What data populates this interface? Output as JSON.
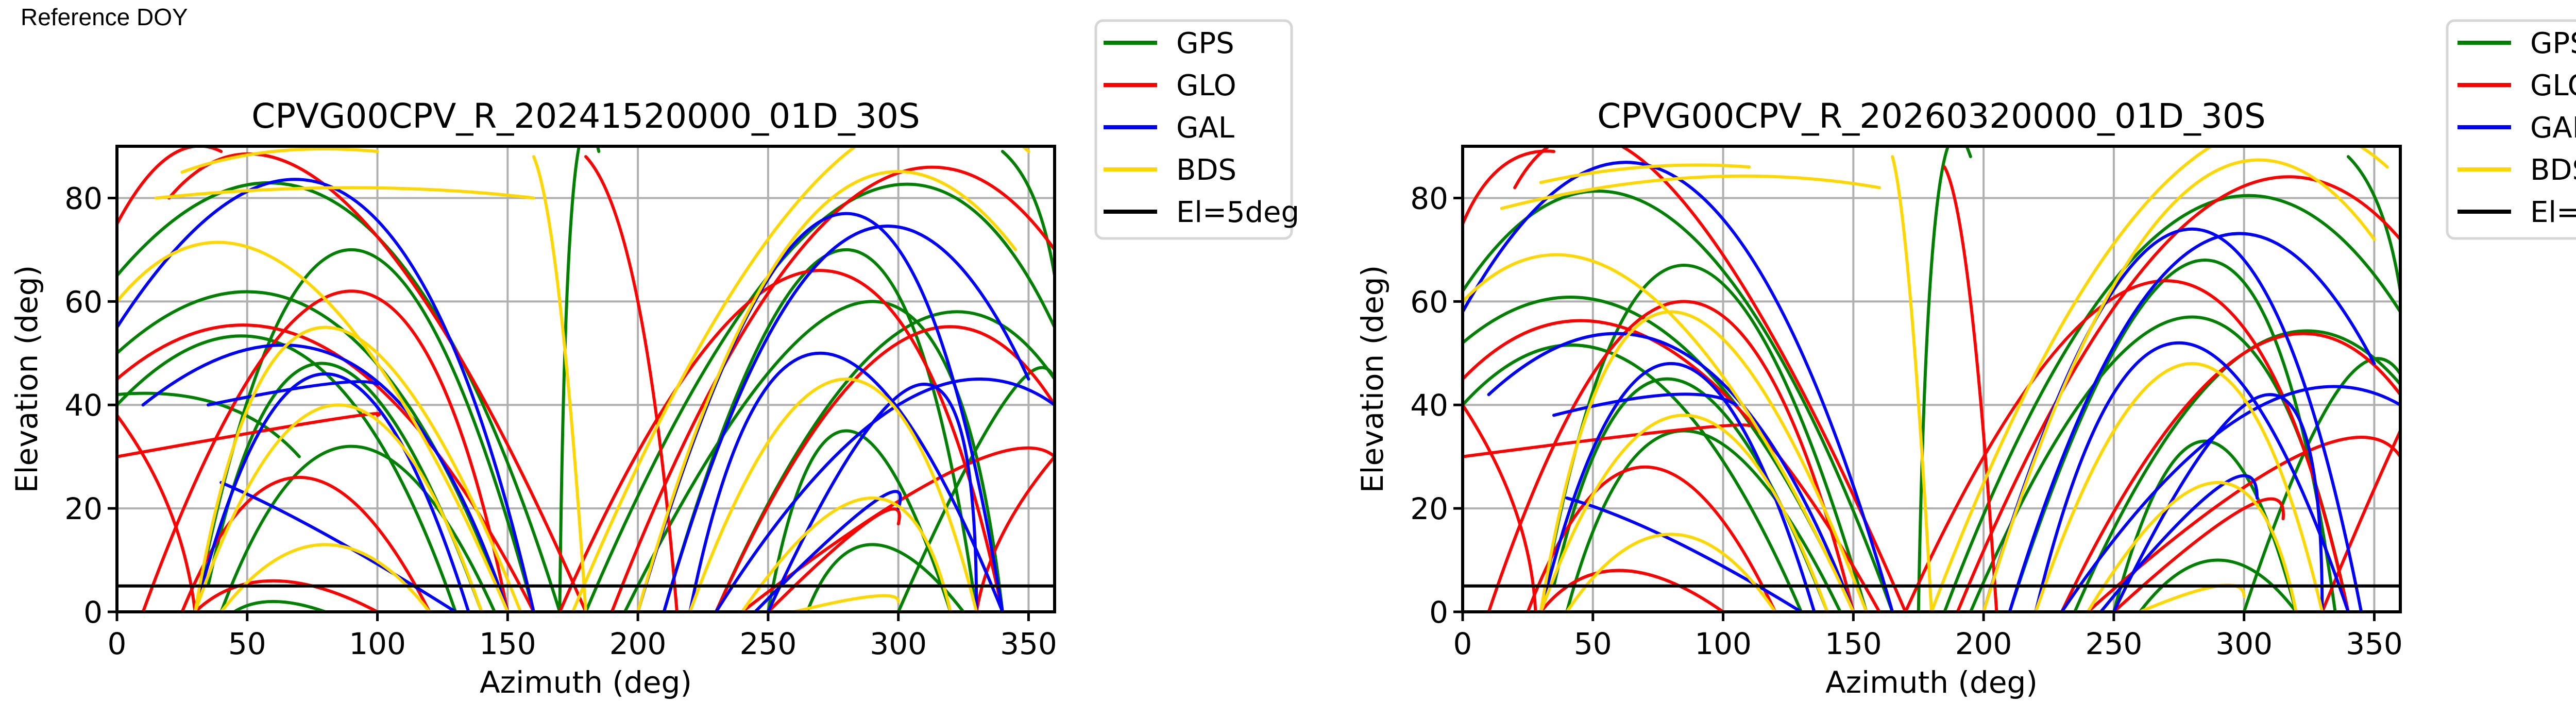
{
  "header": {
    "reference_label": "Reference DOY"
  },
  "systems": [
    {
      "key": "GPS",
      "label": "GPS",
      "color": "#008000"
    },
    {
      "key": "GLO",
      "label": "GLO",
      "color": "#ff0000"
    },
    {
      "key": "GAL",
      "label": "GAL",
      "color": "#0000ff"
    },
    {
      "key": "BDS",
      "label": "BDS",
      "color": "#ffd700"
    }
  ],
  "cutoff": {
    "label": "El=5deg",
    "elevation": 5,
    "color": "#000000"
  },
  "chart_data": [
    {
      "type": "line",
      "title": "CPVG00CPV_R_20241520000_01D_30S",
      "xlabel": "Azimuth (deg)",
      "ylabel": "Elevation (deg)",
      "xlim": [
        0,
        360
      ],
      "ylim": [
        0,
        90
      ],
      "xticks": [
        0,
        50,
        100,
        150,
        200,
        250,
        300,
        350
      ],
      "yticks": [
        0,
        20,
        40,
        60,
        80
      ],
      "grid": true,
      "legend": "outside-top-right",
      "tracks_format": "[az_start, el_start, az_mid, el_mid, az_end, el_end]",
      "tracks": {
        "GPS": [
          [
            0,
            65,
            90,
            77,
            170,
            0
          ],
          [
            30,
            0,
            90,
            70,
            160,
            0
          ],
          [
            0,
            50,
            80,
            57,
            150,
            0
          ],
          [
            40,
            0,
            90,
            32,
            145,
            0
          ],
          [
            35,
            5,
            80,
            48,
            140,
            0
          ],
          [
            0,
            40,
            70,
            50,
            130,
            0
          ],
          [
            180,
            0,
            280,
            79,
            360,
            55
          ],
          [
            210,
            0,
            280,
            70,
            330,
            0
          ],
          [
            195,
            0,
            290,
            60,
            340,
            0
          ],
          [
            230,
            0,
            300,
            54,
            360,
            45
          ],
          [
            250,
            0,
            280,
            35,
            320,
            0
          ],
          [
            265,
            0,
            290,
            13,
            325,
            0
          ],
          [
            170,
            0,
            175,
            80,
            185,
            89
          ],
          [
            340,
            89,
            352,
            80,
            360,
            65
          ],
          [
            45,
            0,
            60,
            2,
            80,
            0
          ],
          [
            0,
            42,
            40,
            40,
            70,
            30
          ],
          [
            300,
            0,
            340,
            40,
            360,
            45
          ]
        ],
        "GLO": [
          [
            0,
            30,
            80,
            37,
            100,
            38
          ],
          [
            0,
            75,
            20,
            88,
            40,
            89
          ],
          [
            20,
            80,
            90,
            78,
            180,
            0
          ],
          [
            10,
            0,
            90,
            62,
            150,
            0
          ],
          [
            25,
            0,
            70,
            26,
            120,
            0
          ],
          [
            30,
            0,
            60,
            6,
            100,
            0
          ],
          [
            0,
            45,
            80,
            51,
            160,
            0
          ],
          [
            170,
            0,
            270,
            66,
            340,
            0
          ],
          [
            190,
            0,
            280,
            79,
            360,
            70
          ],
          [
            230,
            0,
            300,
            52,
            360,
            40
          ],
          [
            240,
            0,
            320,
            27,
            360,
            30
          ],
          [
            250,
            0,
            290,
            18,
            300,
            17
          ],
          [
            330,
            0,
            340,
            15,
            360,
            30
          ],
          [
            180,
            88,
            200,
            60,
            215,
            0
          ],
          [
            0,
            38,
            20,
            20,
            30,
            0
          ]
        ],
        "GAL": [
          [
            0,
            55,
            90,
            80,
            160,
            0
          ],
          [
            10,
            40,
            90,
            48,
            150,
            0
          ],
          [
            30,
            0,
            80,
            46,
            135,
            0
          ],
          [
            35,
            40,
            80,
            44,
            100,
            44
          ],
          [
            40,
            25,
            80,
            15,
            130,
            0
          ],
          [
            200,
            0,
            280,
            77,
            340,
            0
          ],
          [
            210,
            0,
            280,
            72,
            350,
            45
          ],
          [
            220,
            0,
            270,
            50,
            340,
            0
          ],
          [
            230,
            0,
            300,
            40,
            360,
            40
          ],
          [
            245,
            0,
            290,
            21,
            300,
            20
          ],
          [
            250,
            0,
            310,
            44,
            330,
            0
          ]
        ],
        "BDS": [
          [
            25,
            85,
            60,
            89,
            100,
            89
          ],
          [
            0,
            60,
            70,
            65,
            150,
            0
          ],
          [
            30,
            0,
            80,
            55,
            155,
            0
          ],
          [
            40,
            0,
            80,
            13,
            120,
            0
          ],
          [
            30,
            0,
            85,
            40,
            140,
            0
          ],
          [
            175,
            0,
            270,
            84,
            350,
            89
          ],
          [
            200,
            0,
            270,
            78,
            345,
            70
          ],
          [
            220,
            0,
            280,
            45,
            330,
            0
          ],
          [
            240,
            0,
            290,
            22,
            320,
            0
          ],
          [
            260,
            0,
            290,
            3,
            300,
            2
          ],
          [
            160,
            88,
            170,
            60,
            180,
            0
          ],
          [
            15,
            80,
            90,
            82,
            160,
            80
          ]
        ]
      }
    },
    {
      "type": "line",
      "title": "CPVG00CPV_R_20260320000_01D_30S",
      "xlabel": "Azimuth (deg)",
      "ylabel": "Elevation (deg)",
      "xlim": [
        0,
        360
      ],
      "ylim": [
        0,
        90
      ],
      "xticks": [
        0,
        50,
        100,
        150,
        200,
        250,
        300,
        350
      ],
      "yticks": [
        0,
        20,
        40,
        60,
        80
      ],
      "grid": true,
      "legend": "outside-top-right",
      "tracks_format": "[az_start, el_start, az_mid, el_mid, az_end, el_end]",
      "tracks": {
        "GPS": [
          [
            0,
            62,
            80,
            76,
            165,
            0
          ],
          [
            30,
            0,
            85,
            67,
            155,
            0
          ],
          [
            0,
            52,
            75,
            55,
            150,
            0
          ],
          [
            40,
            0,
            85,
            35,
            145,
            0
          ],
          [
            35,
            5,
            80,
            45,
            140,
            0
          ],
          [
            0,
            40,
            65,
            48,
            130,
            0
          ],
          [
            185,
            0,
            275,
            76,
            360,
            58
          ],
          [
            210,
            0,
            285,
            68,
            335,
            0
          ],
          [
            195,
            0,
            280,
            57,
            340,
            0
          ],
          [
            235,
            0,
            300,
            50,
            360,
            44
          ],
          [
            250,
            0,
            285,
            33,
            320,
            0
          ],
          [
            260,
            0,
            290,
            10,
            320,
            0
          ],
          [
            175,
            0,
            182,
            78,
            195,
            88
          ],
          [
            340,
            88,
            352,
            78,
            360,
            62
          ],
          [
            300,
            0,
            335,
            42,
            360,
            46
          ]
        ],
        "GLO": [
          [
            0,
            30,
            80,
            35,
            110,
            36
          ],
          [
            0,
            75,
            15,
            86,
            35,
            89
          ],
          [
            20,
            82,
            80,
            82,
            170,
            0
          ],
          [
            10,
            0,
            85,
            60,
            150,
            0
          ],
          [
            25,
            0,
            70,
            28,
            120,
            0
          ],
          [
            30,
            0,
            60,
            8,
            100,
            0
          ],
          [
            0,
            45,
            75,
            52,
            160,
            0
          ],
          [
            170,
            0,
            270,
            64,
            340,
            0
          ],
          [
            190,
            0,
            280,
            76,
            360,
            72
          ],
          [
            230,
            0,
            300,
            50,
            360,
            42
          ],
          [
            240,
            0,
            320,
            30,
            360,
            30
          ],
          [
            250,
            0,
            300,
            20,
            315,
            18
          ],
          [
            330,
            0,
            345,
            18,
            360,
            35
          ],
          [
            185,
            86,
            195,
            60,
            205,
            0
          ],
          [
            0,
            40,
            20,
            20,
            28,
            0
          ]
        ],
        "GAL": [
          [
            0,
            58,
            85,
            83,
            165,
            0
          ],
          [
            10,
            42,
            85,
            50,
            150,
            0
          ],
          [
            30,
            0,
            80,
            48,
            135,
            0
          ],
          [
            35,
            38,
            80,
            42,
            105,
            40
          ],
          [
            40,
            22,
            80,
            14,
            130,
            0
          ],
          [
            200,
            0,
            280,
            74,
            345,
            0
          ],
          [
            210,
            0,
            280,
            70,
            350,
            48
          ],
          [
            220,
            0,
            275,
            52,
            340,
            0
          ],
          [
            230,
            0,
            300,
            38,
            360,
            40
          ],
          [
            245,
            0,
            290,
            24,
            305,
            22
          ],
          [
            250,
            0,
            310,
            42,
            330,
            0
          ]
        ],
        "BDS": [
          [
            30,
            83,
            70,
            86,
            110,
            86
          ],
          [
            0,
            60,
            70,
            62,
            150,
            0
          ],
          [
            30,
            0,
            80,
            58,
            155,
            0
          ],
          [
            40,
            0,
            80,
            15,
            120,
            0
          ],
          [
            30,
            0,
            85,
            38,
            140,
            0
          ],
          [
            180,
            0,
            270,
            83,
            355,
            86
          ],
          [
            200,
            0,
            275,
            80,
            350,
            72
          ],
          [
            220,
            0,
            280,
            48,
            330,
            0
          ],
          [
            240,
            0,
            290,
            25,
            320,
            0
          ],
          [
            260,
            0,
            290,
            5,
            300,
            3
          ],
          [
            165,
            88,
            172,
            60,
            180,
            0
          ],
          [
            15,
            78,
            90,
            84,
            160,
            82
          ]
        ]
      }
    }
  ]
}
